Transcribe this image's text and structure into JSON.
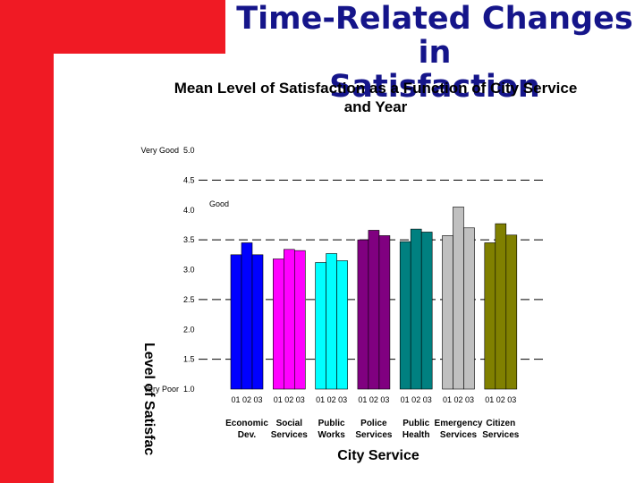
{
  "slide": {
    "title_line1": "Time-Related Changes in",
    "title_line2": "Satisfaction"
  },
  "chart_data": {
    "type": "bar",
    "title_line1": "Mean Level of Satisfaction as a Function of City Service",
    "title_line2": "and Year",
    "xlabel": "City Service",
    "ylabel": "Level of Satisfac",
    "ylim": [
      1.0,
      5.0
    ],
    "yticks": [
      "1.0",
      "1.5",
      "2.0",
      "2.5",
      "3.0",
      "3.5",
      "4.0",
      "4.5",
      "5.0"
    ],
    "yanchors": [
      {
        "value": 5.0,
        "label": "Very Good"
      },
      {
        "value": 4.0,
        "label": "Good"
      },
      {
        "value": 1.0,
        "label": "Very Poor"
      }
    ],
    "dashed_reference_lines": [
      4.5,
      3.5,
      2.5,
      1.5
    ],
    "year_labels": "01 02 03",
    "categories": [
      {
        "line1": "Economic",
        "line2": "Dev.",
        "color": "#0000ff",
        "values": [
          3.25,
          3.45,
          3.25
        ]
      },
      {
        "line1": "Social",
        "line2": "Services",
        "color": "#ff00ff",
        "values": [
          3.18,
          3.34,
          3.32
        ]
      },
      {
        "line1": "Public",
        "line2": "Works",
        "color": "#00ffff",
        "values": [
          3.12,
          3.27,
          3.15
        ]
      },
      {
        "line1": "Police",
        "line2": "Services",
        "color": "#800080",
        "values": [
          3.5,
          3.66,
          3.57
        ]
      },
      {
        "line1": "Public",
        "line2": "Health",
        "color": "#008080",
        "values": [
          3.47,
          3.68,
          3.63
        ]
      },
      {
        "line1": "Emergency",
        "line2": "Services",
        "color": "#c0c0c0",
        "values": [
          3.57,
          4.05,
          3.7
        ]
      },
      {
        "line1": "Citizen",
        "line2": "Services",
        "color": "#808000",
        "values": [
          3.45,
          3.77,
          3.58
        ]
      }
    ]
  }
}
